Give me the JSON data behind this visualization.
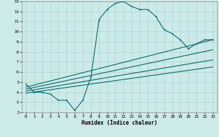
{
  "title": "",
  "xlabel": "Humidex (Indice chaleur)",
  "xlim": [
    -0.5,
    23.5
  ],
  "ylim": [
    2,
    13
  ],
  "xticks": [
    0,
    1,
    2,
    3,
    4,
    5,
    6,
    7,
    8,
    9,
    10,
    11,
    12,
    13,
    14,
    15,
    16,
    17,
    18,
    19,
    20,
    21,
    22,
    23
  ],
  "yticks": [
    2,
    3,
    4,
    5,
    6,
    7,
    8,
    9,
    10,
    11,
    12,
    13
  ],
  "bg_color": "#cceae7",
  "grid_color": "#b0d8d4",
  "line_color": "#006666",
  "curve1_x": [
    0,
    1,
    2,
    3,
    4,
    5,
    6,
    7,
    8,
    9,
    10,
    11,
    12,
    13,
    14,
    15,
    16,
    17,
    18,
    19,
    20,
    21,
    22,
    23
  ],
  "curve1_y": [
    4.8,
    4.0,
    4.0,
    3.8,
    3.2,
    3.2,
    2.2,
    3.2,
    5.5,
    11.2,
    12.2,
    12.8,
    13.0,
    12.5,
    12.2,
    12.2,
    11.5,
    10.2,
    9.8,
    9.2,
    8.3,
    8.8,
    9.2,
    9.2
  ],
  "line2_x": [
    0,
    23
  ],
  "line2_y": [
    4.5,
    9.2
  ],
  "line3_x": [
    0,
    23
  ],
  "line3_y": [
    4.3,
    8.2
  ],
  "line4_x": [
    0,
    23
  ],
  "line4_y": [
    4.1,
    7.2
  ],
  "line5_x": [
    0,
    23
  ],
  "line5_y": [
    3.9,
    6.5
  ],
  "marker": "+"
}
